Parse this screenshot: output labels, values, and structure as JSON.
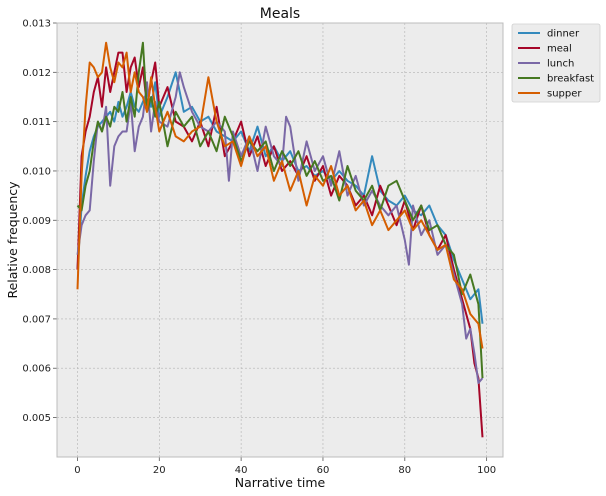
{
  "chart_data": {
    "type": "line",
    "title": "Meals",
    "xlabel": "Narrative time",
    "ylabel": "Relative frequency",
    "xlim": [
      -5,
      104
    ],
    "ylim": [
      0.0042,
      0.013
    ],
    "xticks": [
      0,
      20,
      40,
      60,
      80,
      100
    ],
    "xtick_labels": [
      "0",
      "20",
      "40",
      "60",
      "80",
      "100"
    ],
    "yticks": [
      0.005,
      0.006,
      0.007,
      0.008,
      0.009,
      0.01,
      0.011,
      0.012,
      0.013
    ],
    "ytick_labels": [
      "0.005",
      "0.006",
      "0.007",
      "0.008",
      "0.009",
      "0.010",
      "0.011",
      "0.012",
      "0.013"
    ],
    "grid": true,
    "legend_placement": "outside-top-right",
    "background": "#ececec",
    "series": [
      {
        "name": "dinner",
        "color": "#348abd",
        "points": [
          [
            0,
            0.008
          ],
          [
            1,
            0.0093
          ],
          [
            2,
            0.0099
          ],
          [
            3,
            0.0104
          ],
          [
            4,
            0.0107
          ],
          [
            5,
            0.0109
          ],
          [
            6,
            0.011
          ],
          [
            7,
            0.0111
          ],
          [
            8,
            0.0112
          ],
          [
            9,
            0.011
          ],
          [
            10,
            0.0114
          ],
          [
            11,
            0.0111
          ],
          [
            12,
            0.0113
          ],
          [
            13,
            0.0116
          ],
          [
            14,
            0.0113
          ],
          [
            15,
            0.0112
          ],
          [
            16,
            0.0114
          ],
          [
            17,
            0.0116
          ],
          [
            18,
            0.0113
          ],
          [
            19,
            0.0118
          ],
          [
            20,
            0.0111
          ],
          [
            22,
            0.0115
          ],
          [
            24,
            0.012
          ],
          [
            26,
            0.0112
          ],
          [
            28,
            0.0113
          ],
          [
            30,
            0.011
          ],
          [
            32,
            0.0111
          ],
          [
            34,
            0.0108
          ],
          [
            36,
            0.0107
          ],
          [
            38,
            0.0106
          ],
          [
            40,
            0.0108
          ],
          [
            42,
            0.0104
          ],
          [
            44,
            0.0109
          ],
          [
            46,
            0.0103
          ],
          [
            48,
            0.0105
          ],
          [
            50,
            0.0102
          ],
          [
            52,
            0.0104
          ],
          [
            54,
            0.01
          ],
          [
            56,
            0.0101
          ],
          [
            58,
            0.0099
          ],
          [
            60,
            0.01
          ],
          [
            62,
            0.0098
          ],
          [
            64,
            0.01
          ],
          [
            66,
            0.0098
          ],
          [
            68,
            0.0097
          ],
          [
            70,
            0.0095
          ],
          [
            72,
            0.0103
          ],
          [
            74,
            0.0096
          ],
          [
            76,
            0.0094
          ],
          [
            78,
            0.0093
          ],
          [
            80,
            0.0095
          ],
          [
            82,
            0.0092
          ],
          [
            84,
            0.0091
          ],
          [
            86,
            0.0093
          ],
          [
            88,
            0.0089
          ],
          [
            90,
            0.0087
          ],
          [
            92,
            0.0082
          ],
          [
            94,
            0.0078
          ],
          [
            96,
            0.0074
          ],
          [
            98,
            0.0076
          ],
          [
            99,
            0.0069
          ]
        ]
      },
      {
        "name": "meal",
        "color": "#a60628",
        "points": [
          [
            0,
            0.008
          ],
          [
            1,
            0.0103
          ],
          [
            2,
            0.0108
          ],
          [
            3,
            0.0111
          ],
          [
            4,
            0.0116
          ],
          [
            5,
            0.0119
          ],
          [
            6,
            0.0113
          ],
          [
            7,
            0.0121
          ],
          [
            8,
            0.0116
          ],
          [
            9,
            0.012
          ],
          [
            10,
            0.0124
          ],
          [
            11,
            0.0124
          ],
          [
            12,
            0.0116
          ],
          [
            13,
            0.0121
          ],
          [
            14,
            0.0123
          ],
          [
            15,
            0.0117
          ],
          [
            16,
            0.0121
          ],
          [
            17,
            0.0113
          ],
          [
            18,
            0.0118
          ],
          [
            19,
            0.0122
          ],
          [
            20,
            0.0113
          ],
          [
            22,
            0.0117
          ],
          [
            24,
            0.011
          ],
          [
            26,
            0.0109
          ],
          [
            28,
            0.0106
          ],
          [
            30,
            0.011
          ],
          [
            32,
            0.0105
          ],
          [
            34,
            0.0113
          ],
          [
            36,
            0.0103
          ],
          [
            38,
            0.0106
          ],
          [
            40,
            0.011
          ],
          [
            42,
            0.0103
          ],
          [
            44,
            0.0107
          ],
          [
            46,
            0.0101
          ],
          [
            48,
            0.0105
          ],
          [
            50,
            0.01
          ],
          [
            52,
            0.0102
          ],
          [
            54,
            0.0099
          ],
          [
            56,
            0.0103
          ],
          [
            58,
            0.0098
          ],
          [
            60,
            0.0101
          ],
          [
            62,
            0.0095
          ],
          [
            64,
            0.0099
          ],
          [
            66,
            0.0097
          ],
          [
            68,
            0.0093
          ],
          [
            70,
            0.0095
          ],
          [
            72,
            0.0091
          ],
          [
            74,
            0.0097
          ],
          [
            76,
            0.0093
          ],
          [
            78,
            0.0089
          ],
          [
            80,
            0.0094
          ],
          [
            82,
            0.0088
          ],
          [
            84,
            0.0093
          ],
          [
            86,
            0.0087
          ],
          [
            88,
            0.0084
          ],
          [
            90,
            0.0087
          ],
          [
            92,
            0.008
          ],
          [
            94,
            0.0074
          ],
          [
            96,
            0.0068
          ],
          [
            97,
            0.0061
          ],
          [
            98,
            0.0058
          ],
          [
            99,
            0.0046
          ]
        ]
      },
      {
        "name": "lunch",
        "color": "#7a68a6",
        "points": [
          [
            0,
            0.0083
          ],
          [
            1,
            0.0089
          ],
          [
            2,
            0.0091
          ],
          [
            3,
            0.0092
          ],
          [
            4,
            0.0102
          ],
          [
            5,
            0.011
          ],
          [
            6,
            0.0108
          ],
          [
            7,
            0.0113
          ],
          [
            8,
            0.0097
          ],
          [
            9,
            0.0105
          ],
          [
            10,
            0.0107
          ],
          [
            11,
            0.0108
          ],
          [
            12,
            0.0108
          ],
          [
            13,
            0.0114
          ],
          [
            14,
            0.0104
          ],
          [
            15,
            0.0109
          ],
          [
            16,
            0.0111
          ],
          [
            17,
            0.0118
          ],
          [
            18,
            0.0108
          ],
          [
            19,
            0.0114
          ],
          [
            20,
            0.011
          ],
          [
            22,
            0.0109
          ],
          [
            24,
            0.0115
          ],
          [
            25,
            0.012
          ],
          [
            26,
            0.0117
          ],
          [
            28,
            0.0112
          ],
          [
            30,
            0.0109
          ],
          [
            32,
            0.0108
          ],
          [
            34,
            0.011
          ],
          [
            36,
            0.0108
          ],
          [
            37,
            0.0098
          ],
          [
            38,
            0.0108
          ],
          [
            40,
            0.0103
          ],
          [
            42,
            0.0107
          ],
          [
            44,
            0.01
          ],
          [
            46,
            0.0109
          ],
          [
            48,
            0.0103
          ],
          [
            50,
            0.0101
          ],
          [
            51,
            0.0111
          ],
          [
            52,
            0.0109
          ],
          [
            54,
            0.0098
          ],
          [
            56,
            0.0106
          ],
          [
            58,
            0.01
          ],
          [
            60,
            0.0103
          ],
          [
            62,
            0.0097
          ],
          [
            64,
            0.0104
          ],
          [
            66,
            0.0095
          ],
          [
            68,
            0.0099
          ],
          [
            70,
            0.0093
          ],
          [
            72,
            0.0096
          ],
          [
            74,
            0.0093
          ],
          [
            76,
            0.0091
          ],
          [
            78,
            0.0093
          ],
          [
            80,
            0.0086
          ],
          [
            81,
            0.0081
          ],
          [
            82,
            0.0093
          ],
          [
            84,
            0.0087
          ],
          [
            86,
            0.009
          ],
          [
            88,
            0.0083
          ],
          [
            90,
            0.0085
          ],
          [
            92,
            0.0079
          ],
          [
            94,
            0.0073
          ],
          [
            95,
            0.0066
          ],
          [
            96,
            0.0068
          ],
          [
            97,
            0.0063
          ],
          [
            98,
            0.0057
          ],
          [
            99,
            0.0058
          ]
        ]
      },
      {
        "name": "breakfast",
        "color": "#467821",
        "points": [
          [
            0,
            0.0093
          ],
          [
            1,
            0.0092
          ],
          [
            2,
            0.0097
          ],
          [
            3,
            0.01
          ],
          [
            4,
            0.0106
          ],
          [
            5,
            0.011
          ],
          [
            6,
            0.0108
          ],
          [
            7,
            0.0111
          ],
          [
            8,
            0.0109
          ],
          [
            9,
            0.0113
          ],
          [
            10,
            0.0112
          ],
          [
            11,
            0.0116
          ],
          [
            12,
            0.011
          ],
          [
            13,
            0.0115
          ],
          [
            14,
            0.0111
          ],
          [
            15,
            0.012
          ],
          [
            16,
            0.0126
          ],
          [
            17,
            0.0112
          ],
          [
            18,
            0.0115
          ],
          [
            19,
            0.0111
          ],
          [
            20,
            0.0114
          ],
          [
            22,
            0.0105
          ],
          [
            24,
            0.0112
          ],
          [
            26,
            0.0109
          ],
          [
            28,
            0.0111
          ],
          [
            30,
            0.0105
          ],
          [
            32,
            0.0108
          ],
          [
            34,
            0.0104
          ],
          [
            36,
            0.0111
          ],
          [
            38,
            0.0107
          ],
          [
            40,
            0.0102
          ],
          [
            42,
            0.0106
          ],
          [
            44,
            0.0104
          ],
          [
            46,
            0.0106
          ],
          [
            48,
            0.01
          ],
          [
            50,
            0.0104
          ],
          [
            52,
            0.0101
          ],
          [
            54,
            0.0104
          ],
          [
            56,
            0.0099
          ],
          [
            58,
            0.0102
          ],
          [
            60,
            0.0098
          ],
          [
            62,
            0.0099
          ],
          [
            64,
            0.0094
          ],
          [
            66,
            0.0101
          ],
          [
            68,
            0.0096
          ],
          [
            70,
            0.0094
          ],
          [
            72,
            0.0097
          ],
          [
            74,
            0.0092
          ],
          [
            76,
            0.0097
          ],
          [
            78,
            0.0098
          ],
          [
            80,
            0.0094
          ],
          [
            82,
            0.009
          ],
          [
            84,
            0.0093
          ],
          [
            86,
            0.0088
          ],
          [
            88,
            0.0089
          ],
          [
            90,
            0.0085
          ],
          [
            92,
            0.0083
          ],
          [
            94,
            0.0075
          ],
          [
            96,
            0.0079
          ],
          [
            98,
            0.0073
          ],
          [
            99,
            0.0058
          ]
        ]
      },
      {
        "name": "supper",
        "color": "#d55e00",
        "points": [
          [
            0,
            0.0076
          ],
          [
            1,
            0.0099
          ],
          [
            2,
            0.0113
          ],
          [
            3,
            0.0122
          ],
          [
            4,
            0.0121
          ],
          [
            5,
            0.0119
          ],
          [
            6,
            0.012
          ],
          [
            7,
            0.0126
          ],
          [
            8,
            0.0121
          ],
          [
            9,
            0.0118
          ],
          [
            10,
            0.0122
          ],
          [
            11,
            0.0121
          ],
          [
            12,
            0.0124
          ],
          [
            13,
            0.0116
          ],
          [
            14,
            0.012
          ],
          [
            15,
            0.0116
          ],
          [
            16,
            0.0115
          ],
          [
            17,
            0.0112
          ],
          [
            18,
            0.0119
          ],
          [
            19,
            0.0113
          ],
          [
            20,
            0.0108
          ],
          [
            22,
            0.0112
          ],
          [
            24,
            0.0107
          ],
          [
            26,
            0.0106
          ],
          [
            28,
            0.0108
          ],
          [
            30,
            0.0109
          ],
          [
            32,
            0.0119
          ],
          [
            34,
            0.011
          ],
          [
            36,
            0.0105
          ],
          [
            38,
            0.0106
          ],
          [
            40,
            0.0101
          ],
          [
            42,
            0.0107
          ],
          [
            44,
            0.0103
          ],
          [
            46,
            0.0105
          ],
          [
            48,
            0.0098
          ],
          [
            50,
            0.0102
          ],
          [
            52,
            0.0096
          ],
          [
            54,
            0.01
          ],
          [
            56,
            0.0093
          ],
          [
            58,
            0.0099
          ],
          [
            60,
            0.0097
          ],
          [
            62,
            0.0101
          ],
          [
            64,
            0.0095
          ],
          [
            66,
            0.0097
          ],
          [
            68,
            0.0092
          ],
          [
            70,
            0.0094
          ],
          [
            72,
            0.0089
          ],
          [
            74,
            0.0092
          ],
          [
            76,
            0.0088
          ],
          [
            78,
            0.009
          ],
          [
            80,
            0.0092
          ],
          [
            82,
            0.0088
          ],
          [
            84,
            0.009
          ],
          [
            86,
            0.0087
          ],
          [
            88,
            0.0084
          ],
          [
            90,
            0.0085
          ],
          [
            92,
            0.0078
          ],
          [
            94,
            0.0076
          ],
          [
            96,
            0.0071
          ],
          [
            98,
            0.0069
          ],
          [
            99,
            0.0064
          ]
        ]
      }
    ]
  }
}
